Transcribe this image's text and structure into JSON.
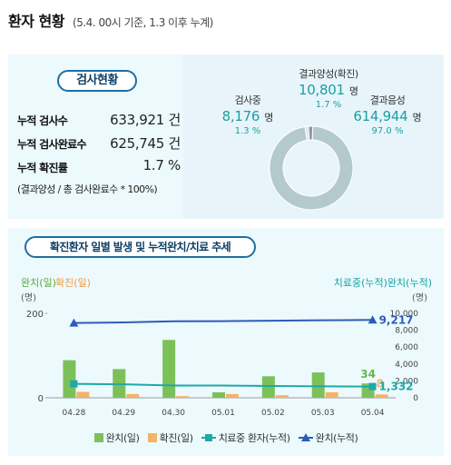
{
  "header": {
    "title": "환자 현황",
    "subtitle": "(5.4. 00시 기준, 1.3 이후 누계)"
  },
  "test_summary": {
    "badge": "검사현황",
    "rows": [
      {
        "label": "누적 검사수",
        "value": "633,921 건"
      },
      {
        "label": "누적 검사완료수",
        "value": "625,745 건"
      },
      {
        "label": "누적 확진률",
        "value": "1.7 %"
      }
    ],
    "note": "(결과양성 / 총 검사완료수 * 100%)"
  },
  "donut": {
    "positive": {
      "label": "결과양성(확진)",
      "value": "10,801",
      "unit": "명",
      "percent": "1.7 %",
      "share": 1.7
    },
    "testing": {
      "label": "검사중",
      "value": "8,176",
      "unit": "명",
      "percent": "1.3 %",
      "share": 1.3
    },
    "negative": {
      "label": "결과음성",
      "value": "614,944",
      "unit": "명",
      "percent": "97.0 %",
      "share": 97.0
    },
    "colors": {
      "negative": "#b4c9ce",
      "testing": "#dde6e8",
      "positive": "#8a9da2"
    }
  },
  "chart_section": {
    "badge": "확진환자 일별 발생 및 누적완치/치료 추세",
    "left_axis_title_a": "완치(일)",
    "left_axis_title_b": "확진(일)",
    "left_axis_unit": "(명)",
    "right_axis_title": "치료중(누적)완치(누적)",
    "right_axis_unit": "(명)",
    "legend": [
      {
        "label": "완치(일)",
        "color": "#7cc05a",
        "kind": "bar"
      },
      {
        "label": "확진(일)",
        "color": "#f7b266",
        "kind": "bar"
      },
      {
        "label": "치료중 환자(누적)",
        "color": "#1fa8a8",
        "kind": "line-square"
      },
      {
        "label": "완치(누적)",
        "color": "#2e5cb8",
        "kind": "line-triangle"
      }
    ]
  },
  "chart_data": {
    "type": "bar",
    "categories": [
      "04.28",
      "04.29",
      "04.30",
      "05.01",
      "05.02",
      "05.03",
      "05.04"
    ],
    "series": [
      {
        "name": "완치(일)",
        "type": "bar",
        "axis": "left",
        "color": "#7cc05a",
        "values": [
          89,
          68,
          137,
          13,
          51,
          60,
          34
        ]
      },
      {
        "name": "확진(일)",
        "type": "bar",
        "axis": "left",
        "color": "#f7b266",
        "values": [
          14,
          9,
          4,
          9,
          6,
          13,
          8
        ]
      },
      {
        "name": "치료중 환자(누적)",
        "type": "line",
        "axis": "right",
        "color": "#1fa8a8",
        "values": [
          1654,
          1593,
          1454,
          1449,
          1402,
          1360,
          1332
        ]
      },
      {
        "name": "완치(누적)",
        "type": "line",
        "axis": "right",
        "color": "#2e5cb8",
        "values": [
          8854,
          8922,
          9059,
          9072,
          9123,
          9183,
          9217
        ]
      }
    ],
    "left_axis": {
      "ticks": [
        "0",
        "200"
      ],
      "ylim": [
        0,
        200
      ]
    },
    "right_axis": {
      "ticks": [
        "0",
        "2,000",
        "4,000",
        "6,000",
        "8,000",
        "10,000"
      ],
      "ylim": [
        0,
        10000
      ]
    },
    "annotations": {
      "cured_daily_last": "34",
      "confirmed_daily_last": "8",
      "treating_last": "1,332",
      "cured_cum_last": "9,217"
    }
  }
}
